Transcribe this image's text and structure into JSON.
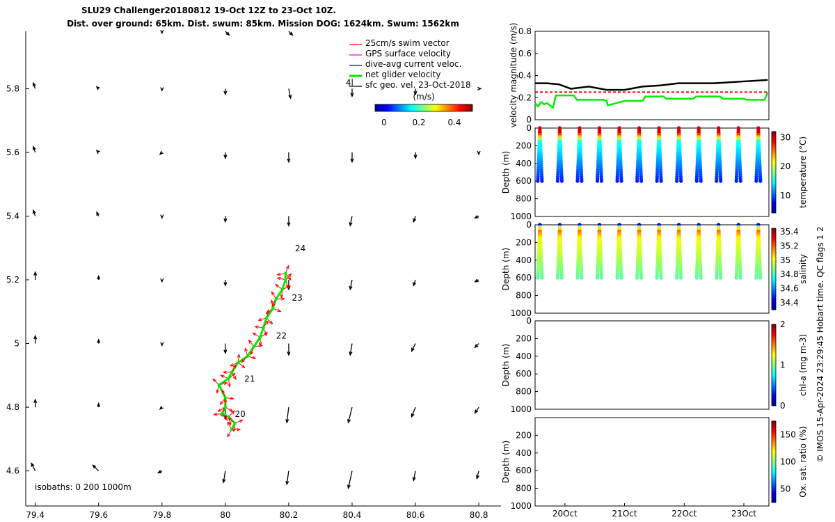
{
  "header": {
    "title": "SLU29 Challenger20180812 19-Oct 12Z to 23-Oct 10Z.",
    "subtitle": "Dist. over ground: 65km. Dist. swum: 85km. Mission DOG: 1624km. Swum: 1562km"
  },
  "footer": {
    "credit": "© IMOS 15-Apr-2024 23:29:45 Hobart time. QC flags 1  2"
  },
  "colors": {
    "swim": "#ff0000",
    "gps": "#ff00ff",
    "dive": "#0000ff",
    "net": "#00ee00",
    "sfc": "#000000"
  },
  "chart_data": [
    {
      "id": "map",
      "type": "quiver",
      "xlim": [
        79.37,
        80.87
      ],
      "ylim": [
        4.49,
        5.98
      ],
      "xticks": [
        "79.4",
        "79.6",
        "79.8",
        "80",
        "80.2",
        "80.4",
        "80.6",
        "80.8"
      ],
      "yticks": [
        "4.6",
        "4.8",
        "5",
        "5.2",
        "5.4",
        "5.6",
        "5.8"
      ],
      "legend": [
        "25cm/s swim vector",
        "GPS surface velocity",
        "dive-avg current veloc.",
        "net glider velocity",
        "sfc geo. vel. 23-Oct-2018"
      ],
      "colorbar": {
        "label": "(m/s)",
        "ticks": [
          "0",
          "0.2",
          "0.4"
        ],
        "range": [
          -0.05,
          0.5
        ]
      },
      "isobaths_label": "isobaths: 0   200  1000m",
      "day_labels": [
        {
          "text": "20",
          "x": 80.03,
          "y": 4.77
        },
        {
          "text": "21",
          "x": 80.06,
          "y": 4.88
        },
        {
          "text": "22",
          "x": 80.16,
          "y": 5.015
        },
        {
          "text": "23",
          "x": 80.21,
          "y": 5.135
        },
        {
          "text": "24",
          "x": 80.22,
          "y": 5.29
        },
        {
          "text": "4l",
          "x": 80.38,
          "y": 5.81
        }
      ],
      "glider_track": [
        [
          80.02,
          4.73
        ],
        [
          80.03,
          4.75
        ],
        [
          80.01,
          4.77
        ],
        [
          79.99,
          4.78
        ],
        [
          80.0,
          4.8
        ],
        [
          80.0,
          4.83
        ],
        [
          79.98,
          4.87
        ],
        [
          80.01,
          4.89
        ],
        [
          80.02,
          4.91
        ],
        [
          80.04,
          4.94
        ],
        [
          80.07,
          4.96
        ],
        [
          80.09,
          4.99
        ],
        [
          80.11,
          5.02
        ],
        [
          80.12,
          5.05
        ],
        [
          80.13,
          5.08
        ],
        [
          80.15,
          5.11
        ],
        [
          80.16,
          5.14
        ],
        [
          80.18,
          5.17
        ],
        [
          80.19,
          5.2
        ],
        [
          80.19,
          5.22
        ]
      ],
      "sfc_vectors": [
        [
          79.4,
          4.6,
          -0.02,
          0.04
        ],
        [
          79.6,
          4.6,
          -0.03,
          0.03
        ],
        [
          79.8,
          4.6,
          -0.02,
          -0.01
        ],
        [
          80.0,
          4.6,
          -0.01,
          -0.06
        ],
        [
          80.2,
          4.6,
          -0.01,
          -0.07
        ],
        [
          80.4,
          4.6,
          -0.02,
          -0.09
        ],
        [
          80.6,
          4.6,
          -0.01,
          -0.05
        ],
        [
          80.8,
          4.6,
          -0.01,
          -0.04
        ],
        [
          79.4,
          4.8,
          0.0,
          0.04
        ],
        [
          79.6,
          4.8,
          0.0,
          0.02
        ],
        [
          79.8,
          4.8,
          -0.01,
          -0.01
        ],
        [
          80.0,
          4.8,
          0.0,
          -0.06
        ],
        [
          80.2,
          4.8,
          -0.01,
          -0.08
        ],
        [
          80.4,
          4.8,
          -0.02,
          -0.08
        ],
        [
          80.6,
          4.8,
          -0.02,
          -0.05
        ],
        [
          80.8,
          4.8,
          -0.02,
          -0.03
        ],
        [
          79.4,
          5.0,
          0.0,
          0.04
        ],
        [
          79.6,
          5.0,
          0.0,
          0.02
        ],
        [
          79.8,
          5.0,
          0.0,
          -0.01
        ],
        [
          80.0,
          5.0,
          0.0,
          -0.05
        ],
        [
          80.2,
          5.0,
          0.0,
          -0.06
        ],
        [
          80.4,
          5.0,
          -0.01,
          -0.06
        ],
        [
          80.6,
          5.0,
          -0.02,
          -0.04
        ],
        [
          80.8,
          5.0,
          -0.02,
          -0.02
        ],
        [
          79.4,
          5.2,
          0.0,
          0.04
        ],
        [
          79.6,
          5.2,
          0.0,
          0.02
        ],
        [
          79.8,
          5.2,
          0.0,
          -0.01
        ],
        [
          80.0,
          5.2,
          0.0,
          -0.03
        ],
        [
          80.2,
          5.2,
          0.0,
          -0.05
        ],
        [
          80.4,
          5.2,
          -0.01,
          -0.05
        ],
        [
          80.6,
          5.2,
          -0.01,
          -0.03
        ],
        [
          80.8,
          5.2,
          -0.02,
          -0.01
        ],
        [
          79.4,
          5.4,
          -0.01,
          0.03
        ],
        [
          79.6,
          5.4,
          -0.01,
          0.02
        ],
        [
          79.8,
          5.4,
          0.0,
          -0.01
        ],
        [
          80.0,
          5.4,
          0.0,
          -0.03
        ],
        [
          80.2,
          5.4,
          0.0,
          -0.05
        ],
        [
          80.4,
          5.4,
          -0.01,
          -0.05
        ],
        [
          80.6,
          5.4,
          -0.01,
          -0.03
        ],
        [
          80.8,
          5.4,
          -0.02,
          -0.01
        ],
        [
          79.4,
          5.6,
          -0.01,
          0.03
        ],
        [
          79.6,
          5.6,
          -0.01,
          0.01
        ],
        [
          79.8,
          5.6,
          -0.01,
          -0.01
        ],
        [
          80.0,
          5.6,
          0.0,
          -0.03
        ],
        [
          80.2,
          5.6,
          0.0,
          -0.05
        ],
        [
          80.4,
          5.6,
          0.0,
          -0.05
        ],
        [
          80.6,
          5.6,
          0.0,
          -0.03
        ],
        [
          80.8,
          5.6,
          0.0,
          -0.01
        ],
        [
          79.4,
          5.8,
          -0.01,
          0.03
        ],
        [
          79.6,
          5.8,
          -0.01,
          0.01
        ],
        [
          79.8,
          5.8,
          0.0,
          -0.01
        ],
        [
          80.0,
          5.8,
          0.0,
          -0.03
        ],
        [
          80.2,
          5.8,
          0.01,
          -0.05
        ],
        [
          80.4,
          5.8,
          0.0,
          -0.04
        ],
        [
          80.6,
          5.8,
          0.0,
          -0.03
        ],
        [
          80.8,
          5.8,
          0.01,
          0.0
        ],
        [
          79.8,
          5.98,
          0.0,
          -0.01
        ],
        [
          80.0,
          5.98,
          0.02,
          -0.02
        ],
        [
          80.2,
          5.98,
          0.02,
          -0.02
        ]
      ]
    },
    {
      "id": "velocity",
      "type": "line",
      "ylabel": "velocity magnitude (m/s)",
      "ylim": [
        0,
        0.8
      ],
      "yticks": [
        "0",
        "0.2",
        "0.4",
        "0.6",
        "0.8"
      ],
      "xlim": [
        19.5,
        23.42
      ],
      "series": [
        {
          "color": "#000000",
          "x": [
            19.5,
            19.7,
            19.9,
            20.1,
            20.4,
            20.7,
            21.0,
            21.3,
            21.6,
            21.9,
            22.2,
            22.5,
            22.8,
            23.1,
            23.4
          ],
          "values": [
            0.33,
            0.33,
            0.32,
            0.28,
            0.3,
            0.27,
            0.27,
            0.3,
            0.31,
            0.33,
            0.33,
            0.33,
            0.34,
            0.35,
            0.36
          ]
        },
        {
          "color": "#00ee00",
          "x": [
            19.5,
            19.55,
            19.6,
            19.65,
            19.7,
            19.75,
            19.8,
            19.85,
            20.15,
            20.2,
            20.65,
            20.7,
            20.72,
            21.0,
            21.3,
            21.35,
            21.65,
            21.7,
            22.15,
            22.2,
            22.6,
            22.65,
            23.0,
            23.05,
            23.35,
            23.4
          ],
          "values": [
            0.15,
            0.12,
            0.16,
            0.14,
            0.15,
            0.13,
            0.11,
            0.22,
            0.22,
            0.18,
            0.18,
            0.17,
            0.13,
            0.17,
            0.17,
            0.21,
            0.21,
            0.19,
            0.19,
            0.21,
            0.21,
            0.19,
            0.19,
            0.18,
            0.18,
            0.25
          ]
        },
        {
          "color": "#ff0000",
          "dashed": true,
          "x": [
            19.5,
            23.4
          ],
          "values": [
            0.25,
            0.25
          ]
        }
      ]
    },
    {
      "id": "temperature",
      "type": "scatter",
      "ylabel": "Depth (m)",
      "ylim": [
        1000,
        0
      ],
      "yticks": [
        "0",
        "200",
        "400",
        "600",
        "800",
        "1000"
      ],
      "colorbar": {
        "label": "temperature (°C)",
        "ticks": [
          "10",
          "20",
          "30"
        ],
        "range": [
          4,
          32
        ]
      },
      "profiles": {
        "start": 19.58,
        "step": 0.333,
        "count": 12,
        "max_depth": 600
      }
    },
    {
      "id": "salinity",
      "type": "scatter",
      "ylabel": "Depth (m)",
      "ylim": [
        1000,
        0
      ],
      "yticks": [
        "0",
        "200",
        "400",
        "600",
        "800",
        "1000"
      ],
      "colorbar": {
        "label": "salinity",
        "ticks": [
          "34.4",
          "34.6",
          "34.8",
          "35",
          "35.2",
          "35.4"
        ],
        "range": [
          34.3,
          35.45
        ]
      },
      "profiles": {
        "start": 19.58,
        "step": 0.333,
        "count": 12,
        "max_depth": 600
      }
    },
    {
      "id": "chla",
      "type": "scatter",
      "ylabel": "Depth (m)",
      "ylim": [
        1000,
        0
      ],
      "yticks": [
        "0",
        "200",
        "400",
        "600",
        "800",
        "1000"
      ],
      "colorbar": {
        "label": "chl-a (mg m-3)",
        "ticks": [
          "0",
          "1",
          "2"
        ],
        "range": [
          0,
          2
        ]
      }
    },
    {
      "id": "oxygen",
      "type": "scatter",
      "ylabel": "Depth (m)",
      "ylim": [
        1000,
        0
      ],
      "yticks": [
        "200",
        "400",
        "600",
        "800",
        "1000"
      ],
      "xticks": [
        "20Oct",
        "21Oct",
        "22Oct",
        "23Oct"
      ],
      "colorbar": {
        "label": "Ox. sat. ratio (%)",
        "ticks": [
          "50",
          "100",
          "150"
        ],
        "range": [
          25,
          175
        ]
      }
    }
  ]
}
